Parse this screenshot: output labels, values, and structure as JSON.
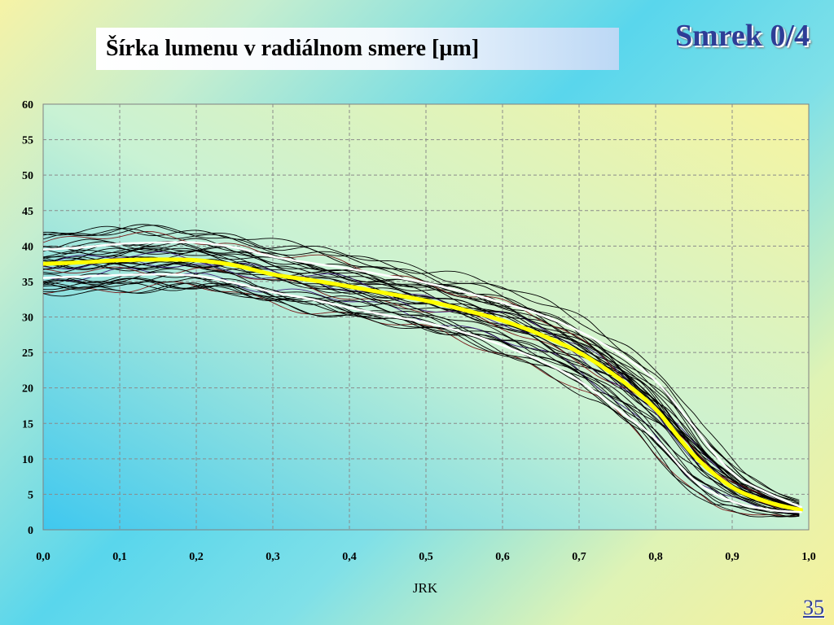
{
  "slide": {
    "title": "Šírka lumenu v radiálnom smere [µm]",
    "corner_label": "Smrek 0/4",
    "page_number": "35"
  },
  "chart_data": {
    "type": "line",
    "xlabel": "JRK",
    "ylabel": "",
    "xlim": [
      0,
      1
    ],
    "ylim": [
      0,
      60
    ],
    "x_ticks": [
      "0,0",
      "0,1",
      "0,2",
      "0,3",
      "0,4",
      "0,5",
      "0,6",
      "0,7",
      "0,8",
      "0,9",
      "1,0"
    ],
    "y_ticks": [
      "0",
      "5",
      "10",
      "15",
      "20",
      "25",
      "30",
      "35",
      "40",
      "45",
      "50",
      "55",
      "60"
    ],
    "grid": true,
    "legend": "none",
    "plot_background": [
      "#3fc8ef",
      "#c9f2d4",
      "#f7f4a0"
    ],
    "x": [
      0.0,
      0.05,
      0.1,
      0.15,
      0.2,
      0.25,
      0.3,
      0.35,
      0.4,
      0.45,
      0.5,
      0.55,
      0.6,
      0.65,
      0.7,
      0.75,
      0.8,
      0.85,
      0.9,
      0.95,
      0.99
    ],
    "series": [
      {
        "role": "mean",
        "color": "#ffff00",
        "values": [
          37.5,
          37.7,
          38.0,
          38.1,
          38.0,
          37.3,
          36.0,
          35.2,
          34.3,
          33.3,
          32.3,
          31.0,
          29.5,
          27.5,
          25.0,
          21.5,
          17.0,
          10.5,
          6.0,
          3.8,
          2.8
        ]
      },
      {
        "role": "upper-band",
        "color": "#ffffff",
        "values": [
          39.5,
          39.8,
          40.3,
          40.5,
          40.5,
          39.8,
          38.5,
          37.6,
          36.8,
          35.8,
          34.8,
          33.5,
          32.0,
          30.3,
          28.0,
          25.0,
          21.0,
          14.5,
          8.0,
          5.0,
          3.2
        ]
      },
      {
        "role": "lower-band",
        "color": "#ffffff",
        "values": [
          35.5,
          35.7,
          35.9,
          36.0,
          35.8,
          34.8,
          33.5,
          32.5,
          31.3,
          30.2,
          29.2,
          27.8,
          26.0,
          23.8,
          21.0,
          17.0,
          12.8,
          7.0,
          4.0,
          2.8,
          2.5
        ]
      }
    ],
    "sample_curves": {
      "count": 40,
      "color": "#000000",
      "spread": [
        4.5,
        4.5,
        4.5,
        4.5,
        4.5,
        4.5,
        4.5,
        4.5,
        4.5,
        4.5,
        4.5,
        4.5,
        4.5,
        4.5,
        4.5,
        4.5,
        4.5,
        4.0,
        2.5,
        1.5,
        1.0
      ]
    }
  }
}
